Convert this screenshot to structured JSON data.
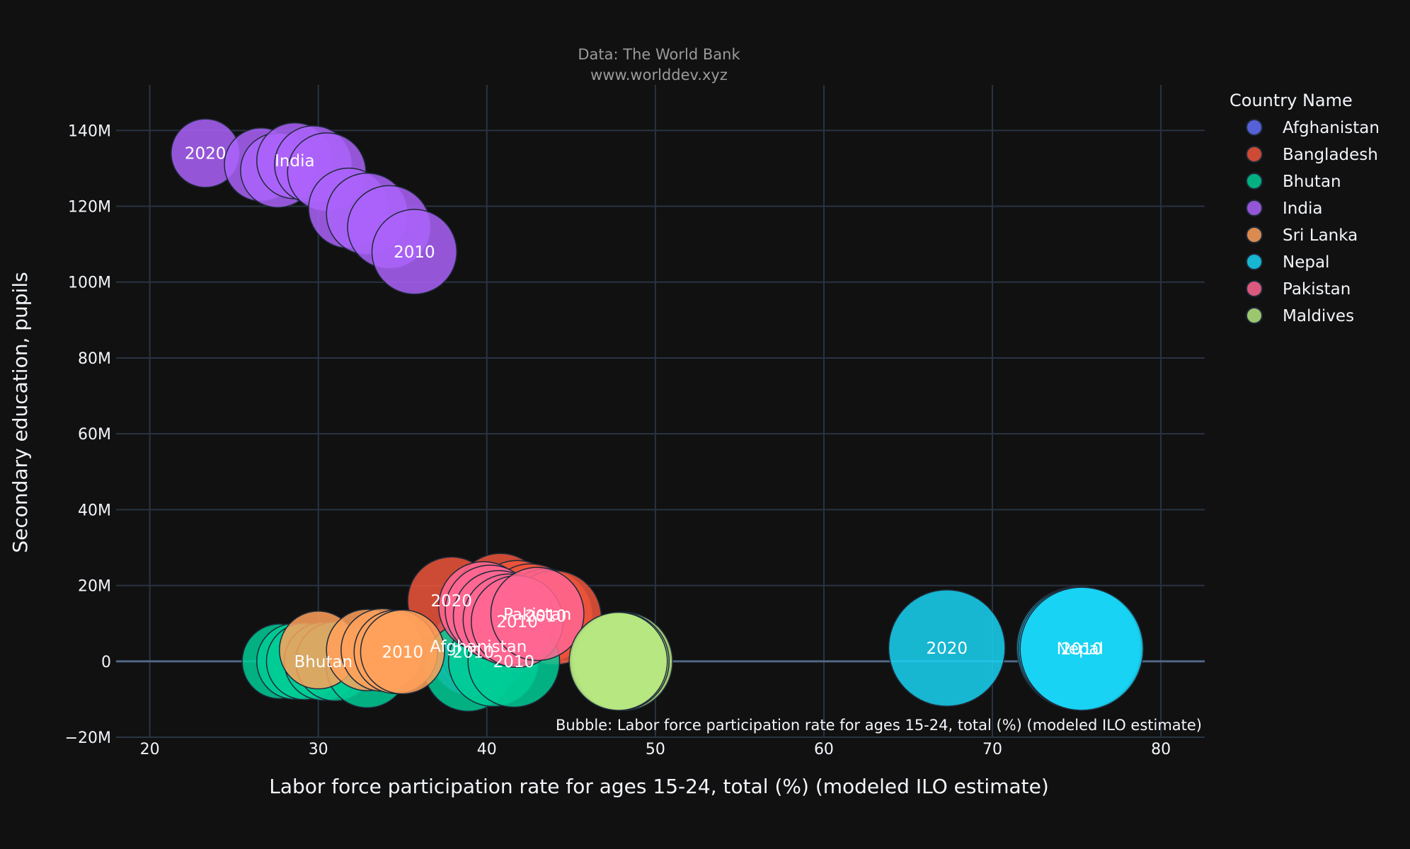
{
  "chart_data": {
    "type": "scatter",
    "subtitle_line1": "Data: The World Bank",
    "subtitle_line2": "www.worlddev.xyz",
    "xlabel": "Labor force participation rate for ages 15-24, total (%) (modeled ILO estimate)",
    "ylabel": "Secondary education, pupils",
    "xlim": [
      18,
      82.6
    ],
    "ylim": [
      -20000000,
      152000000
    ],
    "xticks": [
      {
        "value": 20,
        "label": "20"
      },
      {
        "value": 30,
        "label": "30"
      },
      {
        "value": 40,
        "label": "40"
      },
      {
        "value": 50,
        "label": "50"
      },
      {
        "value": 60,
        "label": "60"
      },
      {
        "value": 70,
        "label": "70"
      },
      {
        "value": 80,
        "label": "80"
      }
    ],
    "yticks": [
      {
        "value": -20000000,
        "label": "−20M"
      },
      {
        "value": 0,
        "label": "0"
      },
      {
        "value": 20000000,
        "label": "20M"
      },
      {
        "value": 40000000,
        "label": "40M"
      },
      {
        "value": 60000000,
        "label": "60M"
      },
      {
        "value": 80000000,
        "label": "80M"
      },
      {
        "value": 100000000,
        "label": "100M"
      },
      {
        "value": 120000000,
        "label": "120M"
      },
      {
        "value": 140000000,
        "label": "140M"
      }
    ],
    "grid": true,
    "bubble_note": "Bubble: Labor force participation rate for ages 15-24, total (%) (modeled ILO estimate)",
    "legend": {
      "title": "Country Name",
      "placement": "right"
    },
    "series": [
      {
        "name": "Afghanistan",
        "color": "#636efa",
        "points": [
          {
            "x": 39.5,
            "y": 4000000,
            "label": "Afghanistan"
          },
          {
            "x": 39.2,
            "y": 2500000,
            "label": "2010"
          },
          {
            "x": 39.9,
            "y": 3500000,
            "label": ""
          }
        ]
      },
      {
        "name": "Bangladesh",
        "color": "#ef553b",
        "points": [
          {
            "x": 37.9,
            "y": 16000000,
            "label": "2020"
          },
          {
            "x": 40.8,
            "y": 16500000,
            "label": ""
          },
          {
            "x": 41.8,
            "y": 14500000,
            "label": ""
          },
          {
            "x": 42.6,
            "y": 13500000,
            "label": ""
          },
          {
            "x": 43.5,
            "y": 12000000,
            "label": "2010"
          },
          {
            "x": 44.0,
            "y": 11500000,
            "label": ""
          }
        ]
      },
      {
        "name": "Bhutan",
        "color": "#00cc96",
        "points": [
          {
            "x": 27.7,
            "y": 0,
            "label": ""
          },
          {
            "x": 28.6,
            "y": 0,
            "label": ""
          },
          {
            "x": 29.2,
            "y": 0,
            "label": ""
          },
          {
            "x": 30.3,
            "y": 0,
            "label": "Bhutan"
          },
          {
            "x": 31.0,
            "y": 0,
            "label": ""
          },
          {
            "x": 32.9,
            "y": -1500000,
            "label": ""
          },
          {
            "x": 38.9,
            "y": -1500000,
            "label": ""
          },
          {
            "x": 40.4,
            "y": 0,
            "label": ""
          },
          {
            "x": 41.6,
            "y": 0,
            "label": "2010"
          }
        ]
      },
      {
        "name": "India",
        "color": "#ab63fa",
        "points": [
          {
            "x": 23.3,
            "y": 134000000,
            "label": "2020"
          },
          {
            "x": 26.6,
            "y": 131000000,
            "label": ""
          },
          {
            "x": 27.6,
            "y": 129500000,
            "label": ""
          },
          {
            "x": 28.6,
            "y": 132000000,
            "label": "India"
          },
          {
            "x": 29.7,
            "y": 131000000,
            "label": ""
          },
          {
            "x": 30.5,
            "y": 129000000,
            "label": ""
          },
          {
            "x": 31.8,
            "y": 119500000,
            "label": ""
          },
          {
            "x": 32.9,
            "y": 118000000,
            "label": ""
          },
          {
            "x": 34.2,
            "y": 114500000,
            "label": ""
          },
          {
            "x": 35.7,
            "y": 108000000,
            "label": "2010"
          }
        ]
      },
      {
        "name": "Sri Lanka",
        "color": "#ffa15a",
        "points": [
          {
            "x": 30.0,
            "y": 3000000,
            "label": ""
          },
          {
            "x": 32.9,
            "y": 3000000,
            "label": ""
          },
          {
            "x": 33.8,
            "y": 3000000,
            "label": ""
          },
          {
            "x": 34.6,
            "y": 2500000,
            "label": ""
          },
          {
            "x": 35.0,
            "y": 2500000,
            "label": "2010"
          }
        ]
      },
      {
        "name": "Nepal",
        "color": "#19d3f3",
        "points": [
          {
            "x": 67.3,
            "y": 3500000,
            "label": "2020"
          },
          {
            "x": 75.1,
            "y": 3500000,
            "label": ""
          },
          {
            "x": 75.2,
            "y": 3400000,
            "label": "Nepal"
          },
          {
            "x": 75.3,
            "y": 3300000,
            "label": "2010"
          }
        ]
      },
      {
        "name": "Pakistan",
        "color": "#ff6692",
        "points": [
          {
            "x": 39.8,
            "y": 14500000,
            "label": ""
          },
          {
            "x": 40.2,
            "y": 13500000,
            "label": ""
          },
          {
            "x": 40.7,
            "y": 12000000,
            "label": ""
          },
          {
            "x": 41.3,
            "y": 11000000,
            "label": ""
          },
          {
            "x": 41.8,
            "y": 10500000,
            "label": "2010"
          },
          {
            "x": 43.0,
            "y": 12500000,
            "label": "Pakistan"
          }
        ]
      },
      {
        "name": "Maldives",
        "color": "#b6e880",
        "points": [
          {
            "x": 48.1,
            "y": 0,
            "label": ""
          },
          {
            "x": 47.9,
            "y": 0,
            "label": ""
          },
          {
            "x": 47.8,
            "y": 0,
            "label": ""
          }
        ]
      }
    ]
  }
}
